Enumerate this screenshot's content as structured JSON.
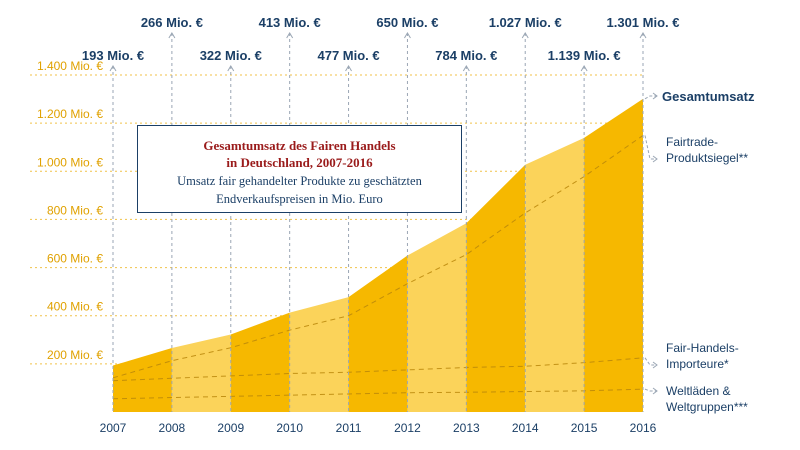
{
  "chart_data": {
    "type": "area",
    "title_line1": "Gesamtumsatz des Fairen Handels",
    "title_line2": "in Deutschland, 2007-2016",
    "subtitle_line1": "Umsatz fair gehandelter Produkte zu geschätzten",
    "subtitle_line2": "Endverkaufspreisen in Mio. Euro",
    "x": [
      2007,
      2008,
      2009,
      2010,
      2011,
      2012,
      2013,
      2014,
      2015,
      2016
    ],
    "value_labels": [
      "193 Mio. €",
      "266 Mio. €",
      "322 Mio. €",
      "413 Mio. €",
      "477 Mio. €",
      "650 Mio. €",
      "784 Mio. €",
      "1.027 Mio. €",
      "1.139 Mio. €",
      "1.301 Mio. €"
    ],
    "series": [
      {
        "name": "Gesamtumsatz",
        "values": [
          193,
          266,
          322,
          413,
          477,
          650,
          784,
          1027,
          1139,
          1301
        ]
      },
      {
        "name": "Fairtrade-Produktsiegel**",
        "values": [
          142,
          213,
          267,
          340,
          400,
          533,
          654,
          827,
          978,
          1149
        ]
      },
      {
        "name": "Fair-Handels-Importeure*",
        "values": [
          130,
          140,
          150,
          160,
          165,
          175,
          185,
          190,
          205,
          225
        ]
      },
      {
        "name": "Weltläden & Weltgruppen***",
        "values": [
          55,
          60,
          65,
          70,
          75,
          80,
          82,
          85,
          88,
          95
        ]
      }
    ],
    "ylim": [
      0,
      1400
    ],
    "y_ticks": [
      {
        "value": 200,
        "label": "200 Mio. €"
      },
      {
        "value": 400,
        "label": "400 Mio. €"
      },
      {
        "value": 600,
        "label": "600 Mio. €"
      },
      {
        "value": 800,
        "label": "800 Mio. €"
      },
      {
        "value": 1000,
        "label": "1.000 Mio. €"
      },
      {
        "value": 1200,
        "label": "1.200 Mio. €"
      },
      {
        "value": 1400,
        "label": "1.400 Mio. €"
      }
    ],
    "legend_labels": {
      "gesamt": "Gesamtumsatz",
      "fairtrade_1": "Fairtrade-",
      "fairtrade_2": "Produktsiegel**",
      "importeure_1": "Fair-Handels-",
      "importeure_2": "Importeure*",
      "weltlaeden_1": "Weltläden &",
      "weltlaeden_2": "Weltgruppen***"
    },
    "grid": true,
    "colors": {
      "dark_band": "#f6b800",
      "light_band": "#fbd35a",
      "text_navy": "#1b3f66",
      "y_tick": "#e0a100",
      "title_red": "#9a1b1b",
      "divider_line": "#b8860b"
    }
  }
}
